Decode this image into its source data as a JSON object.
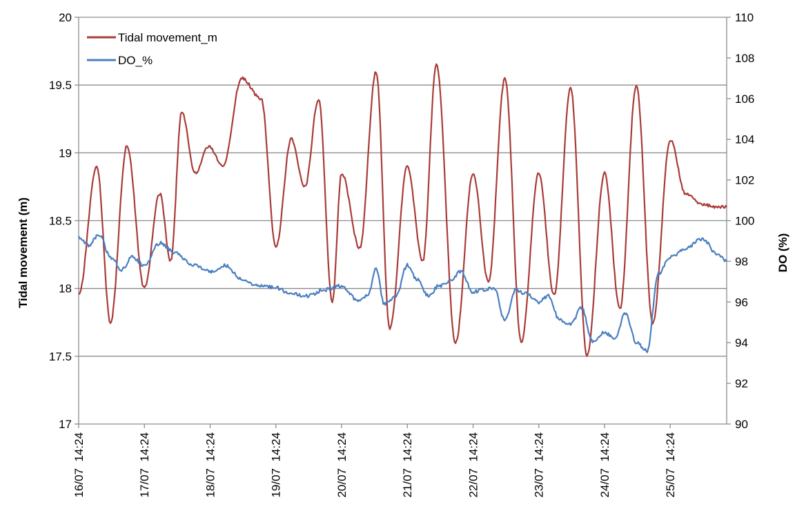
{
  "chart_data": {
    "type": "line",
    "title": "",
    "xlabel": "",
    "ylabel": "Tidal movement (m)",
    "y2label": "DO (%)",
    "ylim": [
      17,
      20
    ],
    "y2lim": [
      90,
      110
    ],
    "yticks": [
      "17",
      "17.5",
      "18",
      "18.5",
      "19",
      "19.5",
      "20"
    ],
    "y2ticks": [
      "90",
      "92",
      "94",
      "96",
      "98",
      "100",
      "102",
      "104",
      "106",
      "108",
      "110"
    ],
    "xlim": [
      "16/07 14:24",
      "26/07 11:00"
    ],
    "xticks": [
      "16/07  14:24",
      "17/07  14:24",
      "18/07  14:24",
      "19/07  14:24",
      "20/07  14:24",
      "21/07  14:24",
      "22/07  14:24",
      "23/07  14:24",
      "24/07  14:24",
      "25/07  14:24"
    ],
    "grid": "horizontal",
    "legend_position": "top-left",
    "series": [
      {
        "name": "Tidal movement_m",
        "axis": "left",
        "color": "#A83B38",
        "x": [
          "16/07 14:24",
          "16/07 21:00",
          "17/07 02:00",
          "17/07 08:00",
          "17/07 14:24",
          "17/07 20:00",
          "18/07 00:00",
          "18/07 04:00",
          "18/07 09:00",
          "18/07 14:00",
          "18/07 19:00",
          "19/07 02:00",
          "19/07 09:00",
          "19/07 14:24",
          "19/07 20:00",
          "20/07 01:00",
          "20/07 06:00",
          "20/07 11:00",
          "20/07 14:24",
          "20/07 21:00",
          "21/07 03:00",
          "21/07 08:00",
          "21/07 14:24",
          "21/07 20:00",
          "22/07 01:00",
          "22/07 08:00",
          "22/07 14:24",
          "22/07 20:00",
          "23/07 02:00",
          "23/07 08:00",
          "23/07 14:24",
          "23/07 20:00",
          "24/07 02:00",
          "24/07 08:00",
          "24/07 14:24",
          "24/07 20:00",
          "25/07 02:00",
          "25/07 08:00",
          "25/07 14:24",
          "25/07 20:00",
          "26/07 02:00",
          "26/07 08:00",
          "26/07 11:00"
        ],
        "values": [
          17.95,
          18.9,
          17.75,
          19.05,
          18.0,
          18.7,
          18.2,
          19.3,
          18.85,
          19.05,
          18.9,
          19.55,
          19.4,
          18.3,
          19.1,
          18.75,
          19.4,
          17.9,
          18.85,
          18.3,
          19.6,
          17.7,
          18.9,
          18.2,
          19.65,
          17.6,
          18.85,
          18.05,
          19.55,
          17.6,
          18.85,
          17.95,
          19.48,
          17.5,
          18.85,
          17.85,
          19.5,
          17.75,
          19.1,
          18.7,
          18.62,
          18.6,
          18.6
        ]
      },
      {
        "name": "DO_%",
        "axis": "right",
        "color": "#4A7EC0",
        "x": [
          "16/07 14:24",
          "16/07 18:00",
          "16/07 22:00",
          "17/07 02:00",
          "17/07 06:00",
          "17/07 10:00",
          "17/07 14:24",
          "17/07 20:00",
          "18/07 02:00",
          "18/07 08:00",
          "18/07 14:24",
          "18/07 20:00",
          "19/07 02:00",
          "19/07 08:00",
          "19/07 14:24",
          "19/07 20:00",
          "20/07 02:00",
          "20/07 08:00",
          "20/07 14:24",
          "20/07 20:00",
          "21/07 00:00",
          "21/07 03:00",
          "21/07 06:00",
          "21/07 10:00",
          "21/07 14:24",
          "21/07 18:00",
          "21/07 22:00",
          "22/07 02:00",
          "22/07 06:00",
          "22/07 10:00",
          "22/07 14:24",
          "22/07 18:00",
          "22/07 22:00",
          "23/07 02:00",
          "23/07 06:00",
          "23/07 10:00",
          "23/07 14:24",
          "23/07 18:00",
          "23/07 22:00",
          "24/07 02:00",
          "24/07 06:00",
          "24/07 10:00",
          "24/07 14:24",
          "24/07 18:00",
          "24/07 22:00",
          "25/07 02:00",
          "25/07 06:00",
          "25/07 10:00",
          "25/07 14:24",
          "25/07 20:00",
          "26/07 02:00",
          "26/07 08:00",
          "26/07 11:00"
        ],
        "values": [
          99.2,
          98.8,
          99.3,
          98.2,
          97.6,
          98.2,
          97.8,
          98.9,
          98.4,
          97.8,
          97.5,
          97.8,
          97.1,
          96.8,
          96.7,
          96.4,
          96.3,
          96.6,
          96.8,
          96.1,
          96.3,
          97.6,
          95.9,
          96.2,
          97.8,
          97.1,
          96.3,
          96.8,
          97.0,
          97.5,
          96.5,
          96.6,
          96.7,
          95.1,
          96.6,
          96.4,
          96.0,
          96.3,
          95.1,
          94.9,
          95.7,
          94.1,
          94.5,
          94.2,
          95.4,
          94.0,
          93.6,
          97.4,
          98.2,
          98.6,
          99.1,
          98.3,
          98.0
        ]
      }
    ]
  }
}
